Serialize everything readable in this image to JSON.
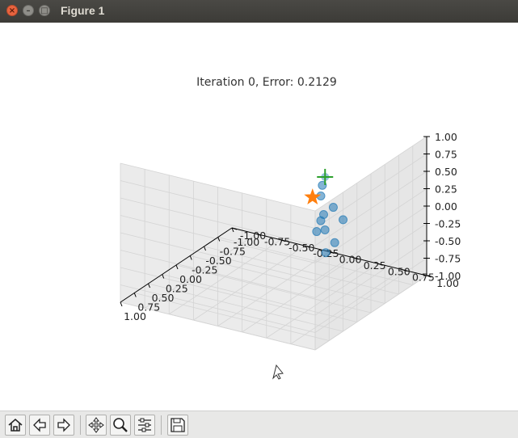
{
  "window": {
    "title": "Figure 1"
  },
  "chart_data": {
    "type": "scatter",
    "title": "Iteration 0, Error: 0.2129",
    "xlabel": "",
    "ylabel": "",
    "zlabel": "",
    "projection": "3d",
    "xlim": [
      -1.0,
      1.0
    ],
    "ylim": [
      -1.0,
      1.0
    ],
    "zlim": [
      -1.0,
      1.0
    ],
    "x_ticks": [
      "-1.00",
      "-0.75",
      "-0.50",
      "-0.25",
      "0.00",
      "0.25",
      "0.50",
      "0.75",
      "1.00"
    ],
    "y_ticks": [
      "-1.00",
      "-0.75",
      "-0.50",
      "-0.25",
      "0.00",
      "0.25",
      "0.50",
      "0.75",
      "1.00"
    ],
    "z_ticks": [
      "-1.00",
      "-0.75",
      "-0.50",
      "-0.25",
      "0.00",
      "0.25",
      "0.50",
      "0.75",
      "1.00"
    ],
    "grid": true,
    "series": [
      {
        "marker": "circle",
        "color": "#1f77b4",
        "points": [
          [
            0.2,
            0.6,
            0.65
          ],
          [
            0.55,
            0.8,
            0.55
          ],
          [
            0.5,
            0.9,
            0.75
          ],
          [
            0.15,
            0.8,
            0.35
          ],
          [
            0.3,
            0.7,
            0.25
          ],
          [
            -0.2,
            0.4,
            0.1
          ],
          [
            0.1,
            0.5,
            0.05
          ],
          [
            0.2,
            0.65,
            -0.15
          ],
          [
            0.3,
            0.8,
            0.1
          ],
          [
            -0.7,
            0.1,
            0.15
          ]
        ]
      },
      {
        "marker": "star",
        "color": "#ff7f0e",
        "points": [
          [
            -0.35,
            0.2,
            0.2
          ]
        ]
      },
      {
        "marker": "plus",
        "color": "#2ca02c",
        "points": [
          [
            -0.4,
            0.3,
            0.5
          ]
        ]
      }
    ]
  },
  "toolbar": {
    "buttons": [
      {
        "name": "home-button",
        "icon": "home-icon"
      },
      {
        "name": "back-button",
        "icon": "arrow-left-icon"
      },
      {
        "name": "forward-button",
        "icon": "arrow-right-icon"
      },
      {
        "name": "pan-button",
        "icon": "move-icon"
      },
      {
        "name": "zoom-button",
        "icon": "magnifier-icon"
      },
      {
        "name": "configure-subplots-button",
        "icon": "sliders-icon"
      },
      {
        "name": "save-button",
        "icon": "floppy-disk-icon"
      }
    ]
  }
}
